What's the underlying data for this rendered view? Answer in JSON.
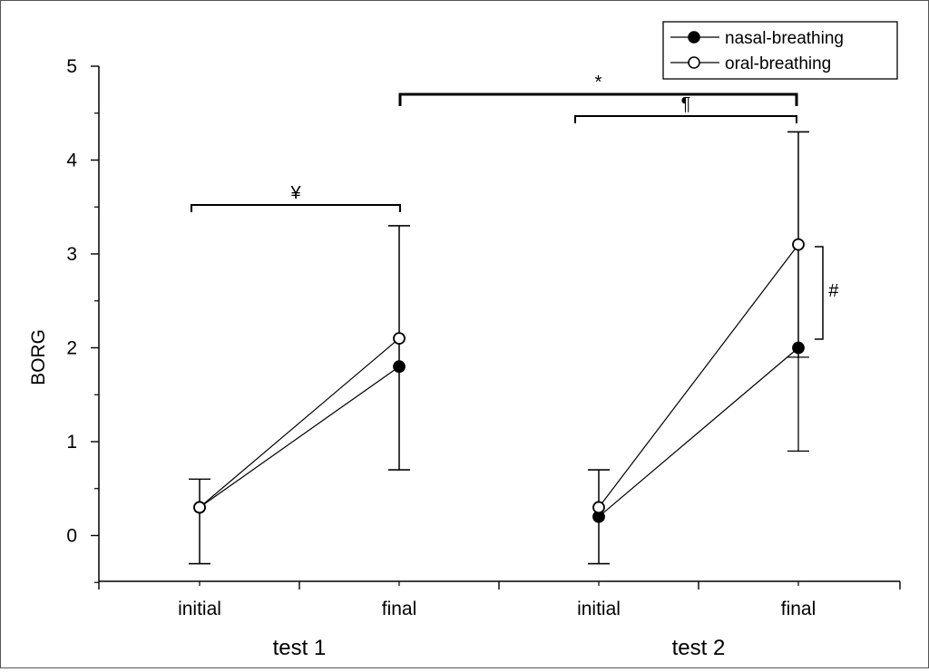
{
  "chart_data": {
    "type": "line",
    "ylabel": "BORG",
    "ylim": [
      -0.5,
      5
    ],
    "yticks": [
      0,
      1,
      2,
      3,
      4,
      5
    ],
    "groups": [
      {
        "label": "test 1",
        "categories": [
          "initial",
          "final"
        ]
      },
      {
        "label": "test 2",
        "categories": [
          "initial",
          "final"
        ]
      }
    ],
    "x": [
      "test 1 initial",
      "test 1 final",
      "test 2 initial",
      "test 2 final"
    ],
    "series": [
      {
        "name": "nasal-breathing",
        "marker": "filled-circle",
        "color": "#000000",
        "values": [
          [
            0.3,
            1.8
          ],
          [
            0.2,
            2.0
          ]
        ],
        "error_plus": [
          [
            0.3,
            1.5
          ],
          [
            0.5,
            2.3
          ]
        ],
        "error_minus": [
          [
            0.6,
            1.1
          ],
          [
            0.5,
            1.1
          ]
        ]
      },
      {
        "name": "oral-breathing",
        "marker": "open-circle",
        "color": "#000000",
        "values": [
          [
            0.3,
            2.1
          ],
          [
            0.3,
            3.1
          ]
        ],
        "error_plus": [
          [
            0.3,
            1.2
          ],
          [
            0.4,
            1.2
          ]
        ],
        "error_minus": [
          [
            0.6,
            1.4
          ],
          [
            0.6,
            1.2
          ]
        ]
      }
    ],
    "annotations": [
      {
        "symbol": "¥",
        "meaning": "test 1 initial vs test 1 final"
      },
      {
        "symbol": "*",
        "meaning": "test 1 final vs test 2 final"
      },
      {
        "symbol": "¶",
        "meaning": "test 2 initial vs test 2 final"
      },
      {
        "symbol": "#",
        "meaning": "nasal vs oral at test 2 final"
      }
    ],
    "legend_position": "top-right",
    "grid": false
  }
}
